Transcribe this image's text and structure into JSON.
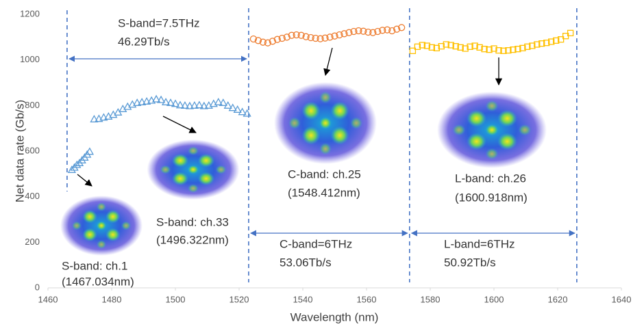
{
  "chart_data": {
    "type": "scatter",
    "x_label": "Wavelength (nm)",
    "y_label": "Net data rate (Gb/s)",
    "xlim": [
      1460,
      1640
    ],
    "xticks": [
      1460,
      1480,
      1500,
      1520,
      1540,
      1560,
      1580,
      1600,
      1620,
      1640
    ],
    "ylim": [
      0,
      1200
    ],
    "yticks": [
      0,
      200,
      400,
      600,
      800,
      1000,
      1200
    ],
    "grid": false,
    "band_edges": [
      1466,
      1523,
      1573.5,
      1626
    ],
    "annotations": [
      "S-band=7.5THz",
      "46.29Tb/s",
      "C-band=6THz",
      "53.06Tb/s",
      "L-band=6THz",
      "50.92Tb/s",
      "S-band: ch.1",
      "(1467.034nm)",
      "S-band: ch.33",
      "(1496.322nm)",
      "C-band: ch.25",
      "(1548.412nm)",
      "L-band: ch.26",
      "(1600.918nm)"
    ],
    "series": [
      {
        "marker": "triangle",
        "color": "#5b9bd5",
        "x": [
          1467.5,
          1468.3,
          1469.1,
          1469.9,
          1470.7,
          1471.5,
          1472.3,
          1473.1,
          1474.5,
          1476,
          1477.5,
          1479,
          1480.5,
          1482,
          1483.5,
          1485,
          1486.5,
          1488,
          1489.5,
          1491,
          1492.5,
          1494,
          1495.5,
          1497,
          1498.5,
          1500,
          1501.5,
          1503,
          1504.5,
          1506,
          1507.5,
          1509,
          1510.5,
          1512,
          1513.5,
          1515,
          1516.5,
          1518,
          1519.5,
          1521,
          1522.5
        ],
        "values": [
          518,
          528,
          540,
          548,
          560,
          572,
          585,
          598,
          740,
          742,
          748,
          752,
          760,
          770,
          785,
          795,
          805,
          812,
          815,
          818,
          822,
          828,
          825,
          815,
          812,
          808,
          802,
          800,
          798,
          800,
          802,
          798,
          800,
          808,
          815,
          812,
          800,
          790,
          782,
          772,
          765
        ]
      },
      {
        "marker": "circle",
        "color": "#ed7d31",
        "x": [
          1524.5,
          1526,
          1527.5,
          1529,
          1530.5,
          1532,
          1533.5,
          1535,
          1536.5,
          1538,
          1539.5,
          1541,
          1542.5,
          1544,
          1545.5,
          1547,
          1548.5,
          1550,
          1551.5,
          1553,
          1554.5,
          1556,
          1557.5,
          1559,
          1560.5,
          1562,
          1563.5,
          1565,
          1566.5,
          1568,
          1569.5,
          1571
        ],
        "values": [
          1092,
          1085,
          1078,
          1075,
          1082,
          1090,
          1095,
          1100,
          1108,
          1110,
          1108,
          1102,
          1098,
          1095,
          1093,
          1096,
          1100,
          1105,
          1110,
          1115,
          1120,
          1125,
          1128,
          1126,
          1122,
          1120,
          1125,
          1130,
          1132,
          1128,
          1135,
          1142
        ]
      },
      {
        "marker": "square",
        "color": "#ffc000",
        "x": [
          1574.5,
          1576,
          1577.5,
          1579,
          1580.5,
          1582,
          1583.5,
          1585,
          1586.5,
          1588,
          1589.5,
          1591,
          1592.5,
          1594,
          1595.5,
          1597,
          1598.5,
          1600,
          1601.5,
          1603,
          1604.5,
          1606,
          1607.5,
          1609,
          1610.5,
          1612,
          1613.5,
          1615,
          1616.5,
          1618,
          1619.5,
          1621,
          1622.5,
          1624
        ],
        "values": [
          1040,
          1058,
          1065,
          1062,
          1055,
          1052,
          1060,
          1068,
          1065,
          1060,
          1055,
          1050,
          1058,
          1062,
          1055,
          1048,
          1045,
          1050,
          1042,
          1040,
          1042,
          1045,
          1048,
          1052,
          1058,
          1062,
          1068,
          1072,
          1075,
          1080,
          1085,
          1090,
          1105,
          1118
        ]
      }
    ]
  }
}
